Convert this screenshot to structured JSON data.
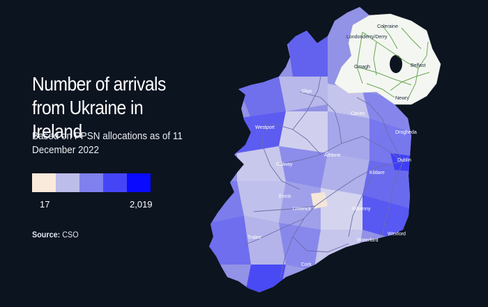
{
  "title": "Number of arrivals from Ukraine in Ireland",
  "subtitle": "Based on PPSN allocations as of 11 December 2022",
  "legend": {
    "min_label": "17",
    "max_label": "2,019",
    "colors": [
      "#faeadb",
      "#bdbde9",
      "#8080ee",
      "#4545f6",
      "#0a0aff"
    ]
  },
  "source": {
    "label": "Source:",
    "value": "CSO"
  },
  "map": {
    "colors": {
      "background": "#0c1420",
      "northern_ireland": "#f4f6f2",
      "road_ni": "#69a84f",
      "road_roi": "#6d6da8"
    },
    "places": [
      "Coleraine",
      "Londonderry/Derry",
      "Omagh",
      "Belfast",
      "Newry",
      "Sligo",
      "Cavan",
      "Westport",
      "Drogheda",
      "Athlone",
      "Dublin",
      "Galway",
      "Kildare",
      "Ennis",
      "Limerick",
      "Kilkenny",
      "Wexford",
      "Tralee",
      "Waterford",
      "Cork"
    ]
  }
}
